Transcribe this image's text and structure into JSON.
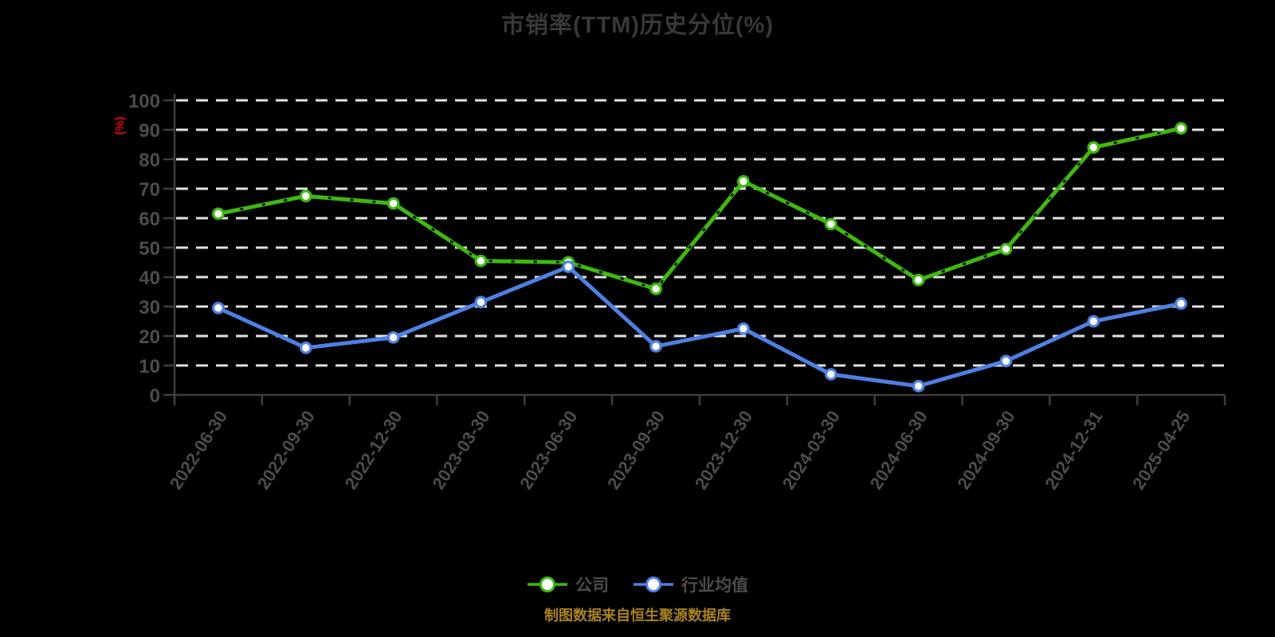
{
  "title": "市销率(TTM)历史分位(%)",
  "y_unit_label": "(%)",
  "caption": "制图数据来自恒生聚源数据库",
  "legend": [
    {
      "label": "公司",
      "color": "#3eba0e"
    },
    {
      "label": "行业均值",
      "color": "#4d80e2"
    }
  ],
  "colors": {
    "background": "#000000",
    "company_series": "#3eba0e",
    "industry_series": "#4d80e2",
    "unit_label": "#e60012",
    "caption_text": "#a9811f",
    "gridline": "#e2e2e2",
    "axis": "#3f3f3f",
    "tick_label": "#4c4c4c",
    "marker_fill": "#ffffff"
  },
  "chart_data": {
    "type": "line",
    "title": "市销率(TTM)历史分位(%)",
    "xlabel": "",
    "ylabel": "(%)",
    "ylim": [
      0,
      100
    ],
    "y_ticks": [
      0,
      10,
      20,
      30,
      40,
      50,
      60,
      70,
      80,
      90,
      100
    ],
    "grid": "horizontal-dashed",
    "legend_position": "bottom",
    "categories": [
      "2022-06-30",
      "2022-09-30",
      "2022-12-30",
      "2023-03-30",
      "2023-06-30",
      "2023-09-30",
      "2023-12-30",
      "2024-03-30",
      "2024-06-30",
      "2024-09-30",
      "2024-12-31",
      "2025-04-25"
    ],
    "series": [
      {
        "name": "公司",
        "color": "#3eba0e",
        "values": [
          61.5,
          67.5,
          65,
          45.5,
          45,
          36,
          72.5,
          58,
          39,
          49.5,
          84,
          90.5
        ]
      },
      {
        "name": "行业均值",
        "color": "#4d80e2",
        "values": [
          29.5,
          16,
          19.5,
          31.5,
          43.5,
          16.5,
          22.5,
          7,
          3,
          11.5,
          25,
          31
        ]
      }
    ]
  }
}
